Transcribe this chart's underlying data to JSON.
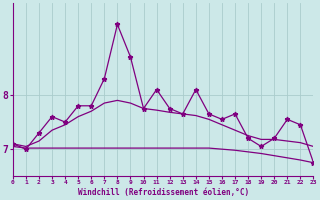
{
  "x": [
    0,
    1,
    2,
    3,
    4,
    5,
    6,
    7,
    8,
    9,
    10,
    11,
    12,
    13,
    14,
    15,
    16,
    17,
    18,
    19,
    20,
    21,
    22,
    23
  ],
  "line_jagged": [
    7.1,
    7.0,
    7.3,
    7.6,
    7.5,
    7.8,
    7.8,
    8.3,
    9.3,
    8.7,
    7.75,
    8.1,
    7.75,
    7.65,
    8.1,
    7.65,
    7.55,
    7.65,
    7.2,
    7.05,
    7.2,
    7.55,
    7.45,
    6.75
  ],
  "line_smooth": [
    7.1,
    7.05,
    7.15,
    7.35,
    7.45,
    7.6,
    7.7,
    7.85,
    7.9,
    7.85,
    7.75,
    7.72,
    7.68,
    7.65,
    7.62,
    7.55,
    7.45,
    7.35,
    7.25,
    7.18,
    7.18,
    7.15,
    7.12,
    7.05
  ],
  "line_flat": [
    7.05,
    7.02,
    7.02,
    7.02,
    7.02,
    7.02,
    7.02,
    7.02,
    7.02,
    7.02,
    7.02,
    7.02,
    7.02,
    7.02,
    7.02,
    7.02,
    7.0,
    6.98,
    6.95,
    6.92,
    6.88,
    6.84,
    6.8,
    6.75
  ],
  "line_color": "#800080",
  "bg_color": "#cce8e8",
  "grid_color": "#aacccc",
  "xlabel": "Windchill (Refroidissement éolien,°C)",
  "ylim": [
    6.5,
    9.7
  ],
  "xlim": [
    0,
    23
  ],
  "xticks": [
    0,
    1,
    2,
    3,
    4,
    5,
    6,
    7,
    8,
    9,
    10,
    11,
    12,
    13,
    14,
    15,
    16,
    17,
    18,
    19,
    20,
    21,
    22,
    23
  ],
  "ytick_vals": [
    7,
    8
  ]
}
